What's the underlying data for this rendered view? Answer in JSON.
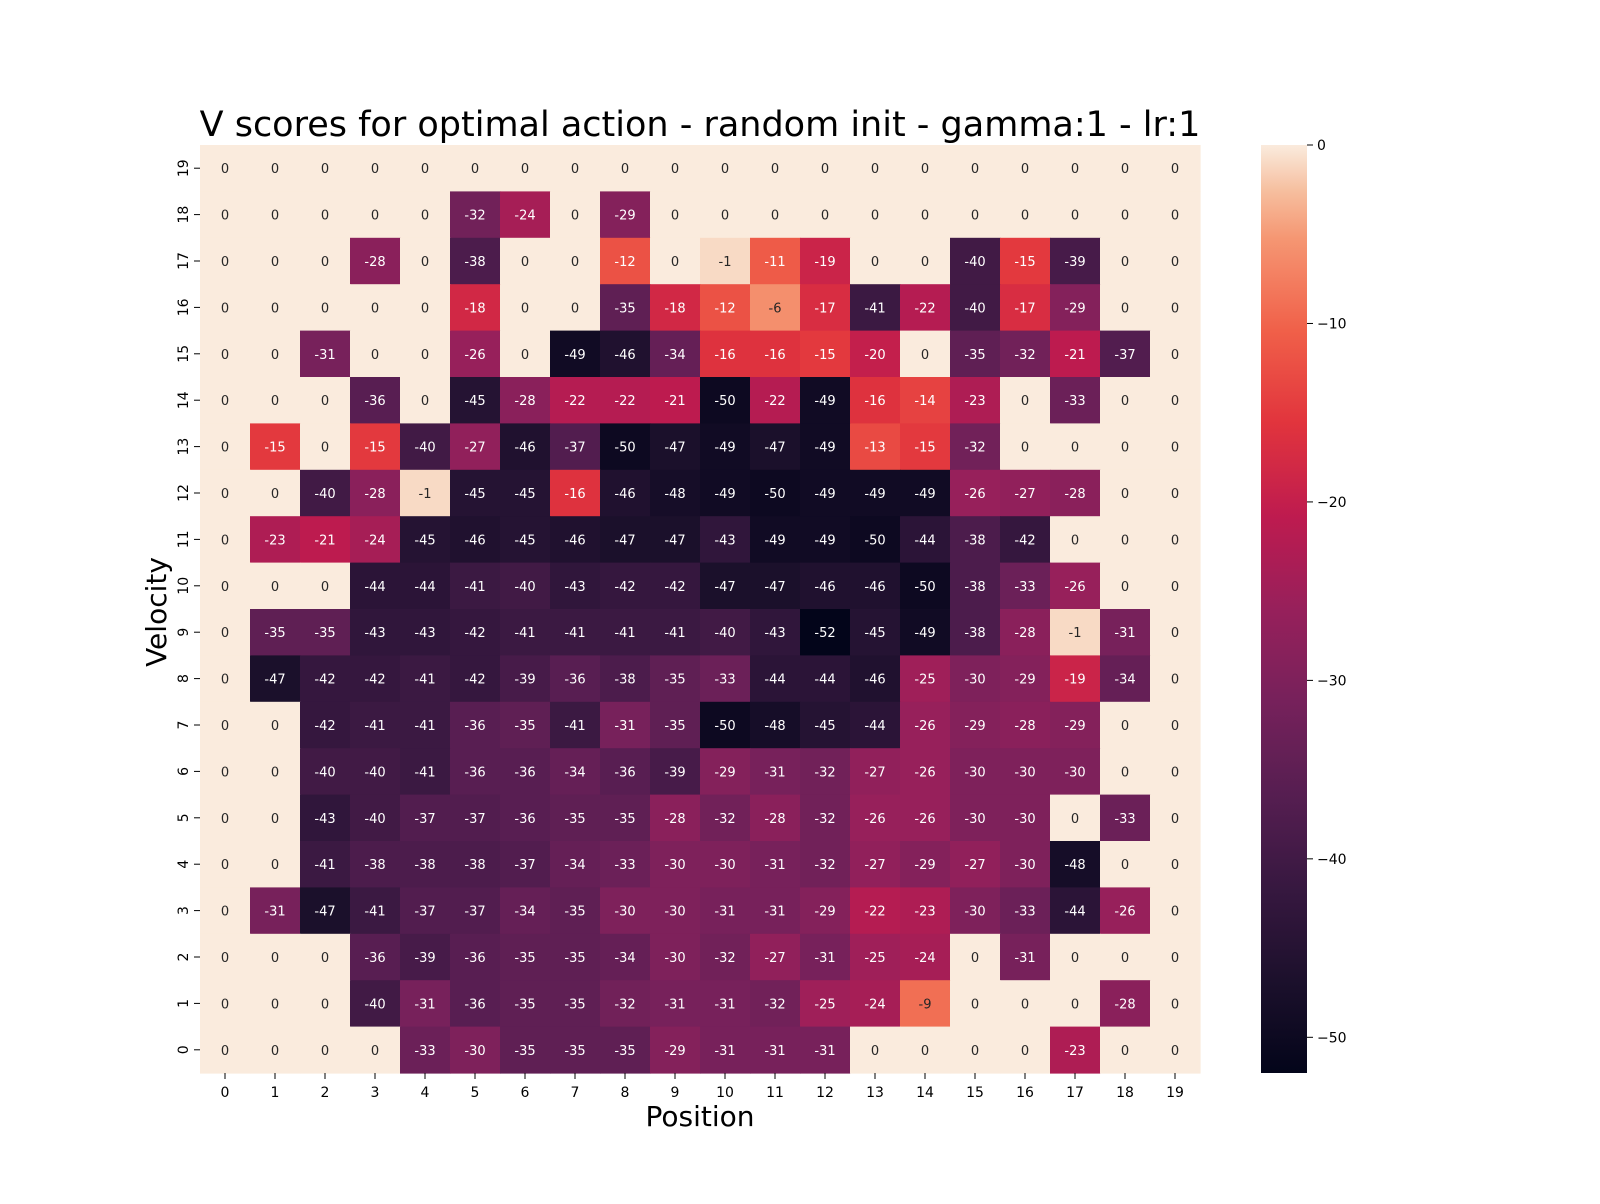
{
  "chart_data": {
    "type": "heatmap",
    "title": "V scores for optimal action - random init - gamma:1 - lr:1",
    "xlabel": "Position",
    "ylabel": "Velocity",
    "x_categories": [
      "0",
      "1",
      "2",
      "3",
      "4",
      "5",
      "6",
      "7",
      "8",
      "9",
      "10",
      "11",
      "12",
      "13",
      "14",
      "15",
      "16",
      "17",
      "18",
      "19"
    ],
    "y_categories_top_to_bottom": [
      "19",
      "18",
      "17",
      "16",
      "15",
      "14",
      "13",
      "12",
      "11",
      "10",
      "9",
      "8",
      "7",
      "6",
      "5",
      "4",
      "3",
      "2",
      "1",
      "0"
    ],
    "values": [
      [
        0,
        0,
        0,
        0,
        0,
        0,
        0,
        0,
        0,
        0,
        0,
        0,
        0,
        0,
        0,
        0,
        0,
        0,
        0,
        0
      ],
      [
        0,
        0,
        0,
        0,
        0,
        -32,
        -24,
        0,
        -29,
        0,
        0,
        0,
        0,
        0,
        0,
        0,
        0,
        0,
        0,
        0
      ],
      [
        0,
        0,
        0,
        -28,
        0,
        -38,
        0,
        0,
        -12,
        0,
        -1,
        -11,
        -19,
        0,
        0,
        -40,
        -15,
        -39,
        0,
        0
      ],
      [
        0,
        0,
        0,
        0,
        0,
        -18,
        0,
        0,
        -35,
        -18,
        -12,
        -6,
        -17,
        -41,
        -22,
        -40,
        -17,
        -29,
        0,
        0
      ],
      [
        0,
        0,
        -31,
        0,
        0,
        -26,
        0,
        -49,
        -46,
        -34,
        -16,
        -16,
        -15,
        -20,
        0,
        -35,
        -32,
        -21,
        -37,
        0
      ],
      [
        0,
        0,
        0,
        -36,
        0,
        -45,
        -28,
        -22,
        -22,
        -21,
        -50,
        -22,
        -49,
        -16,
        -14,
        -23,
        0,
        -33,
        0,
        0
      ],
      [
        0,
        -15,
        0,
        -15,
        -40,
        -27,
        -46,
        -37,
        -50,
        -47,
        -49,
        -47,
        -49,
        -13,
        -15,
        -32,
        0,
        0,
        0,
        0
      ],
      [
        0,
        0,
        -40,
        -28,
        -1,
        -45,
        -45,
        -16,
        -46,
        -48,
        -49,
        -50,
        -49,
        -49,
        -49,
        -26,
        -27,
        -28,
        0,
        0
      ],
      [
        0,
        -23,
        -21,
        -24,
        -45,
        -46,
        -45,
        -46,
        -47,
        -47,
        -43,
        -49,
        -49,
        -50,
        -44,
        -38,
        -42,
        0,
        0,
        0
      ],
      [
        0,
        0,
        0,
        -44,
        -44,
        -41,
        -40,
        -43,
        -42,
        -42,
        -47,
        -47,
        -46,
        -46,
        -50,
        -38,
        -33,
        -26,
        0,
        0
      ],
      [
        0,
        -35,
        -35,
        -43,
        -43,
        -42,
        -41,
        -41,
        -41,
        -41,
        -40,
        -43,
        -52,
        -45,
        -49,
        -38,
        -28,
        -1,
        -31,
        0
      ],
      [
        0,
        -47,
        -42,
        -42,
        -41,
        -42,
        -39,
        -36,
        -38,
        -35,
        -33,
        -44,
        -44,
        -46,
        -25,
        -30,
        -29,
        -19,
        -34,
        0
      ],
      [
        0,
        0,
        -42,
        -41,
        -41,
        -36,
        -35,
        -41,
        -31,
        -35,
        -50,
        -48,
        -45,
        -44,
        -26,
        -29,
        -28,
        -29,
        0,
        0
      ],
      [
        0,
        0,
        -40,
        -40,
        -41,
        -36,
        -36,
        -34,
        -36,
        -39,
        -29,
        -31,
        -32,
        -27,
        -26,
        -30,
        -30,
        -30,
        0,
        0
      ],
      [
        0,
        0,
        -43,
        -40,
        -37,
        -37,
        -36,
        -35,
        -35,
        -28,
        -32,
        -28,
        -32,
        -26,
        -26,
        -30,
        -30,
        0,
        -33,
        0
      ],
      [
        0,
        0,
        -41,
        -38,
        -38,
        -38,
        -37,
        -34,
        -33,
        -30,
        -30,
        -31,
        -32,
        -27,
        -29,
        -27,
        -30,
        -48,
        0,
        0
      ],
      [
        0,
        -31,
        -47,
        -41,
        -37,
        -37,
        -34,
        -35,
        -30,
        -30,
        -31,
        -31,
        -29,
        -22,
        -23,
        -30,
        -33,
        -44,
        -26,
        0
      ],
      [
        0,
        0,
        0,
        -36,
        -39,
        -36,
        -35,
        -35,
        -34,
        -30,
        -32,
        -27,
        -31,
        -25,
        -24,
        0,
        -31,
        0,
        0,
        0
      ],
      [
        0,
        0,
        0,
        -40,
        -31,
        -36,
        -35,
        -35,
        -32,
        -31,
        -31,
        -32,
        -25,
        -24,
        -9,
        0,
        0,
        0,
        -28,
        0
      ],
      [
        0,
        0,
        0,
        0,
        -33,
        -30,
        -35,
        -35,
        -35,
        -29,
        -31,
        -31,
        -31,
        0,
        0,
        0,
        0,
        -23,
        0,
        0
      ]
    ],
    "colorbar": {
      "min": -52,
      "max": 0,
      "ticks": [
        0,
        -10,
        -20,
        -30,
        -40,
        -50
      ],
      "tick_labels": [
        "0",
        "−10",
        "−20",
        "−30",
        "−40",
        "−50"
      ],
      "colormap": "rocket"
    },
    "grid": false,
    "legend": "colorbar-right"
  }
}
